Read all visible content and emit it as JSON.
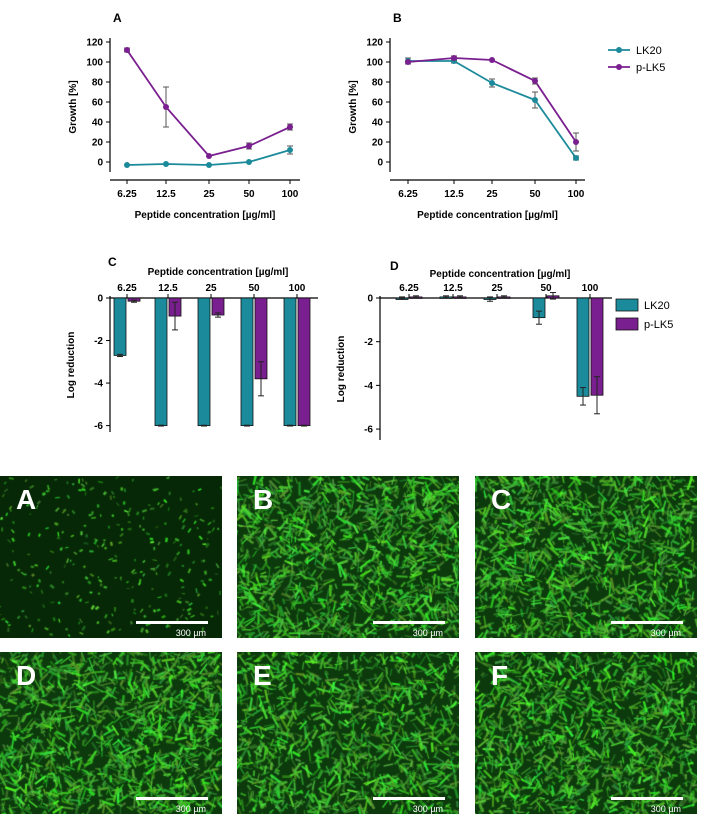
{
  "colors": {
    "LK20": "#1b8a9a",
    "pLK5": "#7a1f8f"
  },
  "legend_top": [
    "LK20",
    "p-LK5"
  ],
  "legend_bottom": [
    "LK20",
    "p-LK5"
  ],
  "chart_data": [
    {
      "panel": "A",
      "type": "line",
      "categories": [
        "6.25",
        "12.5",
        "25",
        "50",
        "100"
      ],
      "xlabel": "Peptide concentration [µg/ml]",
      "ylabel": "Growth [%]",
      "ylim": [
        -10,
        120
      ],
      "yticks": [
        0,
        20,
        40,
        60,
        80,
        100,
        120
      ],
      "series": [
        {
          "name": "LK20",
          "values": [
            -3,
            -2,
            -3,
            0,
            12
          ],
          "err": [
            1,
            1,
            1,
            1,
            4
          ]
        },
        {
          "name": "p-LK5",
          "values": [
            112,
            55,
            6,
            16,
            35
          ],
          "err": [
            2,
            20,
            1,
            3,
            3
          ]
        }
      ]
    },
    {
      "panel": "B",
      "type": "line",
      "categories": [
        "6.25",
        "12.5",
        "25",
        "50",
        "100"
      ],
      "xlabel": "Peptide concentration [µg/ml]",
      "ylabel": "Growth [%]",
      "ylim": [
        -10,
        120
      ],
      "yticks": [
        0,
        20,
        40,
        60,
        80,
        100,
        120
      ],
      "series": [
        {
          "name": "LK20",
          "values": [
            101,
            101,
            79,
            62,
            4
          ],
          "err": [
            3,
            2,
            4,
            8,
            2
          ]
        },
        {
          "name": "p-LK5",
          "values": [
            100,
            104,
            102,
            81,
            20
          ],
          "err": [
            1,
            2,
            1,
            3,
            9
          ]
        }
      ]
    },
    {
      "panel": "C",
      "type": "bar",
      "categories": [
        "6.25",
        "12.5",
        "25",
        "50",
        "100"
      ],
      "xlabel": "Peptide concentration [µg/ml]",
      "ylabel": "Log reduction",
      "ylim": [
        -6.3,
        0
      ],
      "yticks": [
        0,
        -2,
        -4,
        -6
      ],
      "series": [
        {
          "name": "LK20",
          "values": [
            -2.7,
            -6.0,
            -6.0,
            -6.0,
            -6.0
          ],
          "err": [
            0.05,
            0.02,
            0.02,
            0.02,
            0.02
          ]
        },
        {
          "name": "p-LK5",
          "values": [
            -0.15,
            -0.85,
            -0.8,
            -3.8,
            -6.0
          ],
          "err": [
            0.05,
            0.65,
            0.1,
            0.8,
            0.02
          ]
        }
      ]
    },
    {
      "panel": "D",
      "type": "bar",
      "categories": [
        "6.25",
        "12.5",
        "25",
        "50",
        "100"
      ],
      "xlabel": "Peptide concentration [µg/ml]",
      "ylabel": "Log reduction",
      "ylim": [
        -6.5,
        0
      ],
      "yticks": [
        0,
        -2,
        -4,
        -6
      ],
      "series": [
        {
          "name": "LK20",
          "values": [
            0.0,
            0.05,
            -0.05,
            -0.9,
            -4.5
          ],
          "err": [
            0.05,
            0.05,
            0.1,
            0.3,
            0.4
          ]
        },
        {
          "name": "p-LK5",
          "values": [
            0.05,
            0.05,
            0.05,
            0.1,
            -4.45
          ],
          "err": [
            0.05,
            0.05,
            0.05,
            0.15,
            0.85
          ]
        }
      ]
    }
  ],
  "micrographs": {
    "scale_label": "300 µm",
    "tiles": [
      {
        "letter": "A",
        "density": 0.18
      },
      {
        "letter": "B",
        "density": 1.0
      },
      {
        "letter": "C",
        "density": 0.95
      },
      {
        "letter": "D",
        "density": 1.0
      },
      {
        "letter": "E",
        "density": 0.85
      },
      {
        "letter": "F",
        "density": 0.95
      }
    ]
  }
}
